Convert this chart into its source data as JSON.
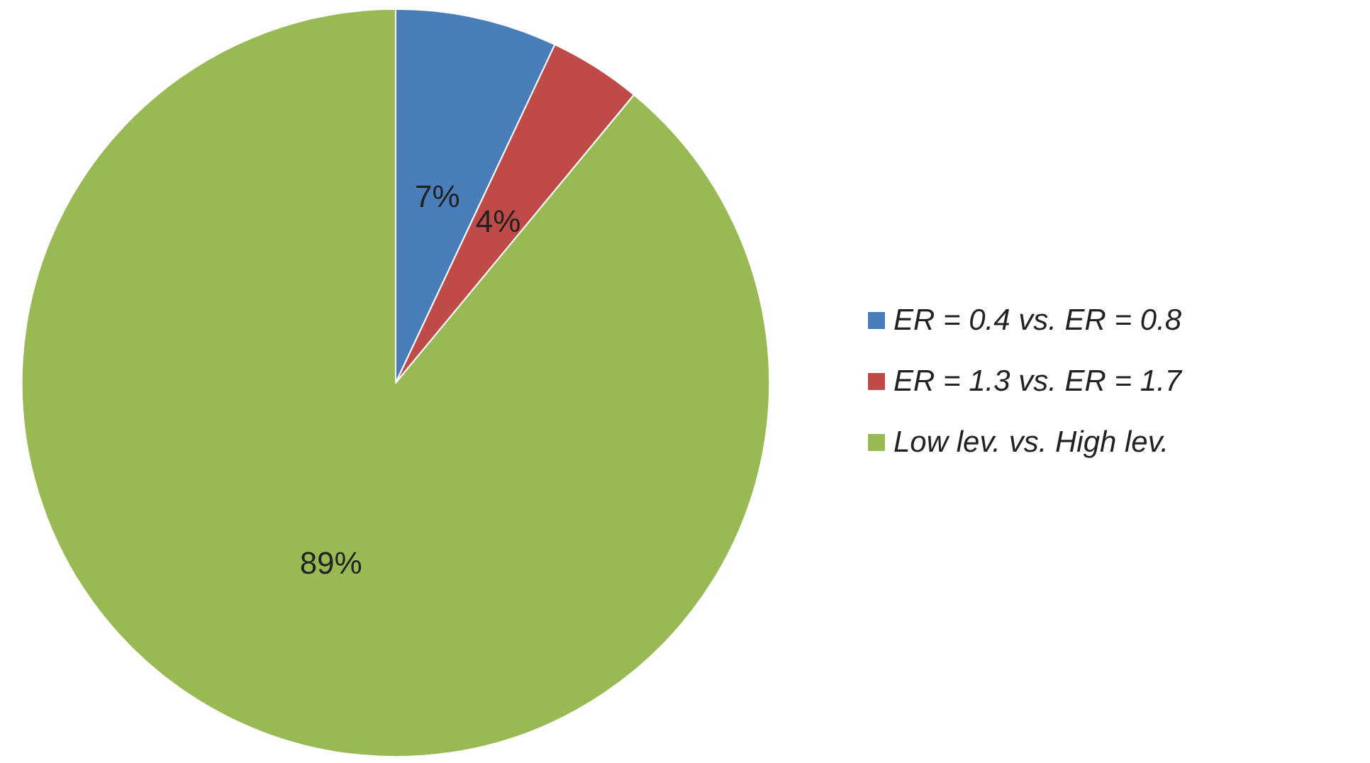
{
  "chart_data": {
    "type": "pie",
    "categories": [
      "ER = 0.4 vs. ER = 0.8",
      "ER = 1.3 vs. ER = 1.7",
      "Low lev. vs. High lev."
    ],
    "values": [
      7,
      4,
      89
    ],
    "colors": [
      "#4a7ebb",
      "#be4b48",
      "#98b954"
    ],
    "value_labels": [
      "7%",
      "4%",
      "89%"
    ],
    "legend": "right"
  }
}
